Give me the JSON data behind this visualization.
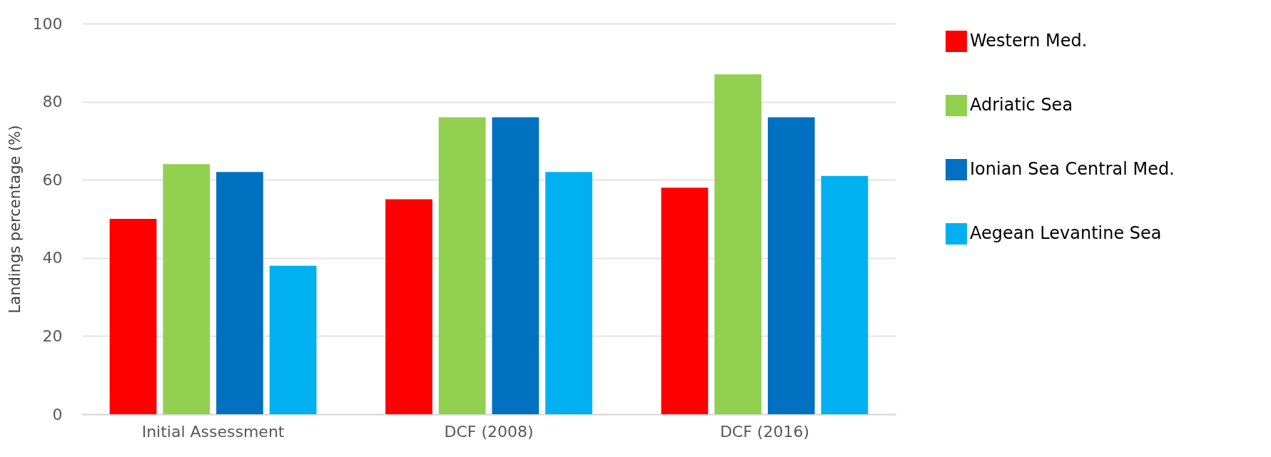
{
  "chart_data": {
    "type": "bar",
    "ylabel": "Landings percentage (%)",
    "categories": [
      "Initial Assessment",
      "DCF (2008)",
      "DCF (2016)"
    ],
    "series": [
      {
        "name": "Western Med.",
        "color": "#ff0000",
        "values": [
          50,
          55,
          58
        ]
      },
      {
        "name": "Adriatic Sea",
        "color": "#92d050",
        "values": [
          64,
          76,
          87
        ]
      },
      {
        "name": "Ionian Sea Central Med.",
        "color": "#0070c0",
        "values": [
          62,
          76,
          76
        ]
      },
      {
        "name": "Aegean Levantine Sea",
        "color": "#00b0f0",
        "values": [
          38,
          62,
          61
        ]
      }
    ],
    "ylim": [
      0,
      100
    ],
    "yticks": [
      0,
      20,
      40,
      60,
      80,
      100
    ],
    "grid": "y",
    "legend": "right"
  }
}
